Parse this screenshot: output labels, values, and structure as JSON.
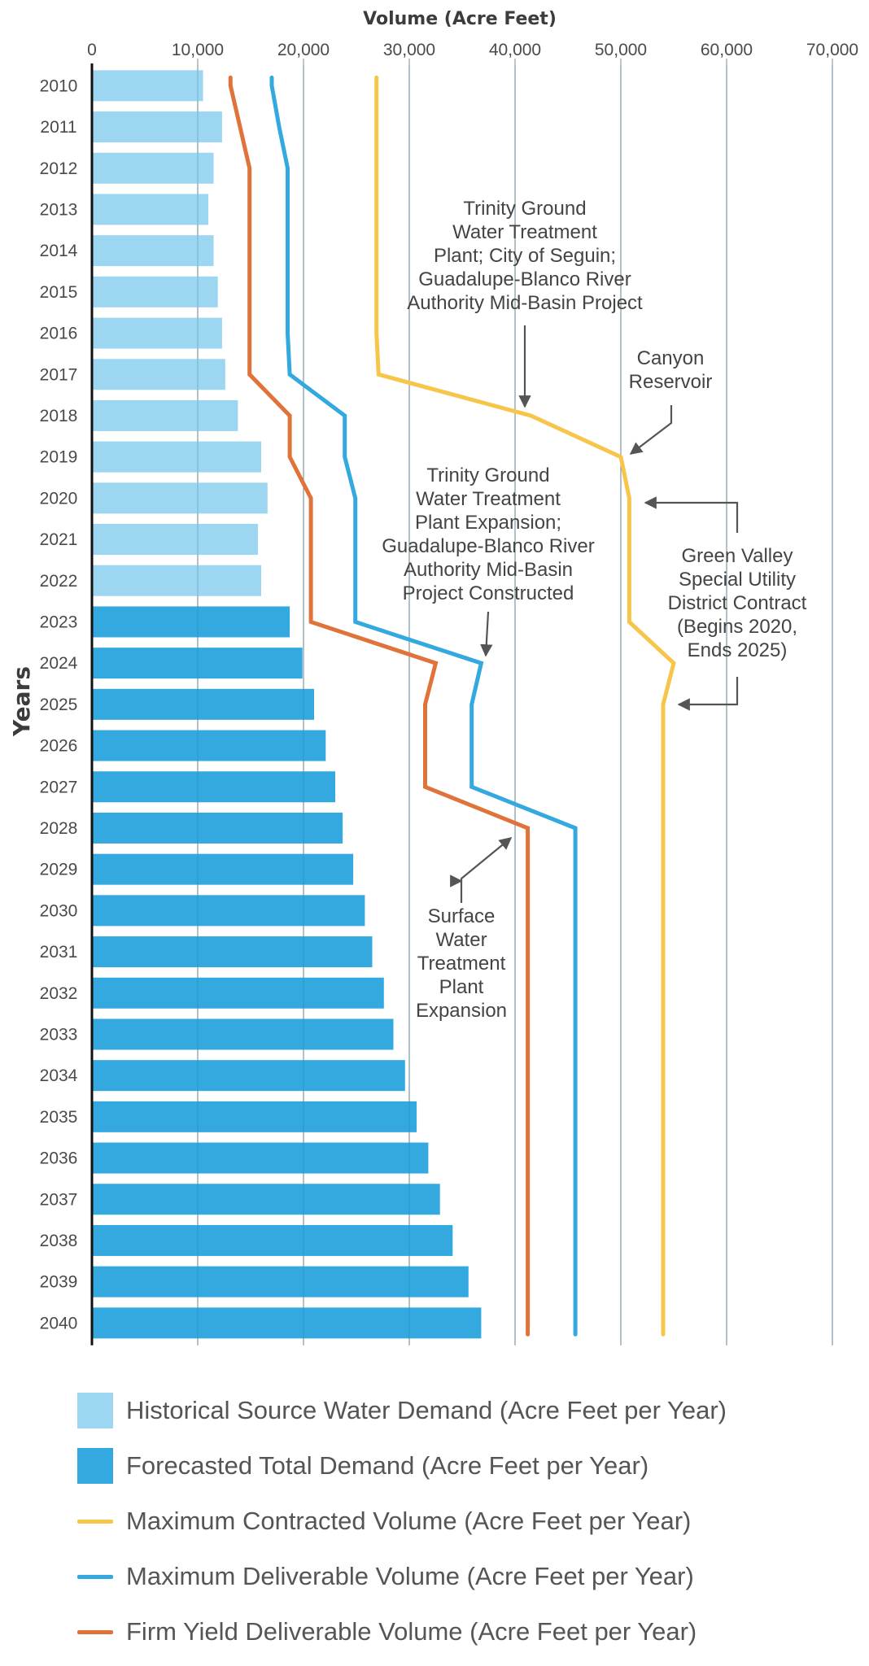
{
  "chart_data": {
    "type": "bar",
    "orientation": "horizontal",
    "xlabel": "Volume (Acre Feet)",
    "ylabel": "Years",
    "xlim": [
      0,
      70000
    ],
    "xticks": [
      0,
      10000,
      20000,
      30000,
      40000,
      50000,
      60000,
      70000
    ],
    "xtick_labels": [
      "0",
      "10,000",
      "20,000",
      "30,000",
      "40,000",
      "50,000",
      "60,000",
      "70,000"
    ],
    "categories": [
      "2010",
      "2011",
      "2012",
      "2013",
      "2014",
      "2015",
      "2016",
      "2017",
      "2018",
      "2019",
      "2020",
      "2021",
      "2022",
      "2023",
      "2024",
      "2025",
      "2026",
      "2027",
      "2028",
      "2029",
      "2030",
      "2031",
      "2032",
      "2033",
      "2034",
      "2035",
      "2036",
      "2037",
      "2038",
      "2039",
      "2040"
    ],
    "series": [
      {
        "name": "Historical Source Water Demand (Acre Feet per Year)",
        "kind": "bar",
        "color": "#9dd6f1",
        "values": [
          10500,
          12300,
          11500,
          11000,
          11500,
          11900,
          12300,
          12600,
          13800,
          16000,
          16600,
          15700,
          16000,
          null,
          null,
          null,
          null,
          null,
          null,
          null,
          null,
          null,
          null,
          null,
          null,
          null,
          null,
          null,
          null,
          null,
          null
        ]
      },
      {
        "name": "Forecasted Total Demand (Acre Feet per Year)",
        "kind": "bar",
        "color": "#33a9e0",
        "values": [
          null,
          null,
          null,
          null,
          null,
          null,
          null,
          null,
          null,
          null,
          null,
          null,
          null,
          18700,
          19900,
          21000,
          22100,
          23000,
          23700,
          24700,
          25800,
          26500,
          27600,
          28500,
          29600,
          30700,
          31800,
          32900,
          34100,
          35600,
          36800
        ]
      },
      {
        "name": "Maximum Contracted Volume (Acre Feet per Year)",
        "kind": "line",
        "color": "#f6c54a",
        "values": [
          26900,
          26900,
          26900,
          26900,
          26900,
          26900,
          26900,
          27100,
          41500,
          50000,
          50800,
          50800,
          50800,
          50800,
          55000,
          54000,
          54000,
          54000,
          54000,
          54000,
          54000,
          54000,
          54000,
          54000,
          54000,
          54000,
          54000,
          54000,
          54000,
          54000,
          54000
        ]
      },
      {
        "name": "Maximum Deliverable Volume (Acre Feet per Year)",
        "kind": "line",
        "color": "#33a9e0",
        "values": [
          17000,
          17700,
          18500,
          18500,
          18500,
          18500,
          18500,
          18700,
          23900,
          23900,
          24900,
          24900,
          24900,
          24900,
          36800,
          35900,
          35900,
          35900,
          45700,
          45700,
          45700,
          45700,
          45700,
          45700,
          45700,
          45700,
          45700,
          45700,
          45700,
          45700,
          45700
        ]
      },
      {
        "name": "Firm Yield Deliverable Volume (Acre Feet per Year)",
        "kind": "line",
        "color": "#e0733a",
        "values": [
          13100,
          14000,
          14900,
          14900,
          14900,
          14900,
          14900,
          14900,
          18700,
          18700,
          20700,
          20700,
          20700,
          20700,
          32500,
          31500,
          31500,
          31500,
          41200,
          41200,
          41200,
          41200,
          41200,
          41200,
          41200,
          41200,
          41200,
          41200,
          41200,
          41200,
          41200
        ]
      }
    ],
    "annotations": [
      {
        "id": "trinity",
        "lines": [
          "Trinity Ground",
          "Water Treatment",
          "Plant; City of Seguin;",
          "Guadalupe-Blanco River",
          "Authority Mid-Basin Project"
        ]
      },
      {
        "id": "canyon",
        "lines": [
          "Canyon",
          "Reservoir"
        ]
      },
      {
        "id": "trinity-exp",
        "lines": [
          "Trinity Ground",
          "Water Treatment",
          "Plant Expansion;",
          "Guadalupe-Blanco River",
          "Authority Mid-Basin",
          "Project Constructed"
        ]
      },
      {
        "id": "green-valley",
        "lines": [
          "Green Valley",
          "Special Utility",
          "District Contract",
          "(Begins 2020,",
          "Ends 2025)"
        ]
      },
      {
        "id": "surface",
        "lines": [
          "Surface",
          "Water",
          "Treatment",
          "Plant",
          "Expansion"
        ]
      }
    ]
  },
  "legend": {
    "items": [
      {
        "label": "Historical Source Water Demand (Acre Feet per Year)",
        "color": "#9dd6f1",
        "kind": "box"
      },
      {
        "label": "Forecasted Total Demand (Acre Feet per Year)",
        "color": "#33a9e0",
        "kind": "box"
      },
      {
        "label": "Maximum Contracted Volume (Acre Feet per Year)",
        "color": "#f6c54a",
        "kind": "line"
      },
      {
        "label": "Maximum Deliverable Volume (Acre Feet per Year)",
        "color": "#33a9e0",
        "kind": "line"
      },
      {
        "label": "Firm Yield Deliverable Volume (Acre Feet per Year)",
        "color": "#e0733a",
        "kind": "line"
      }
    ]
  },
  "colors": {
    "grid": "#8a8a8a",
    "axis": "#111111",
    "arrow": "#555555"
  }
}
